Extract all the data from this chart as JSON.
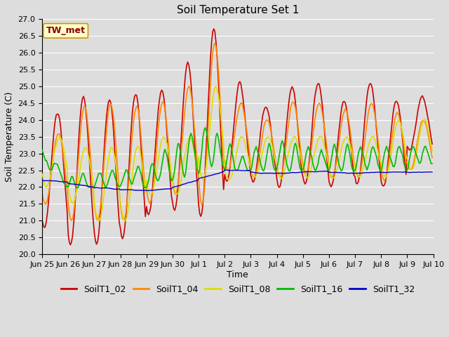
{
  "title": "Soil Temperature Set 1",
  "xlabel": "Time",
  "ylabel": "Soil Temperature (C)",
  "ylim": [
    20.0,
    27.0
  ],
  "yticks": [
    20.0,
    20.5,
    21.0,
    21.5,
    22.0,
    22.5,
    23.0,
    23.5,
    24.0,
    24.5,
    25.0,
    25.5,
    26.0,
    26.5,
    27.0
  ],
  "x_tick_labels": [
    "Jun 25",
    "Jun 26",
    "Jun 27",
    "Jun 28",
    "Jun 29",
    "Jun 30",
    "Jul 1",
    "Jul 2",
    "Jul 3",
    "Jul 4",
    "Jul 5",
    "Jul 6",
    "Jul 7",
    "Jul 8",
    "Jul 9",
    "Jul 10"
  ],
  "colors": {
    "SoilT1_02": "#cc0000",
    "SoilT1_04": "#ff8800",
    "SoilT1_08": "#dddd00",
    "SoilT1_16": "#00bb00",
    "SoilT1_32": "#0000cc"
  },
  "annotation_text": "TW_met",
  "annotation_color": "#880000",
  "annotation_bg": "#ffffcc",
  "annotation_border": "#cc9900",
  "background_color": "#dddddd",
  "plot_bg_color": "#dddddd",
  "grid_color": "#ffffff",
  "title_fontsize": 11,
  "axis_fontsize": 9,
  "tick_fontsize": 8,
  "legend_fontsize": 9
}
